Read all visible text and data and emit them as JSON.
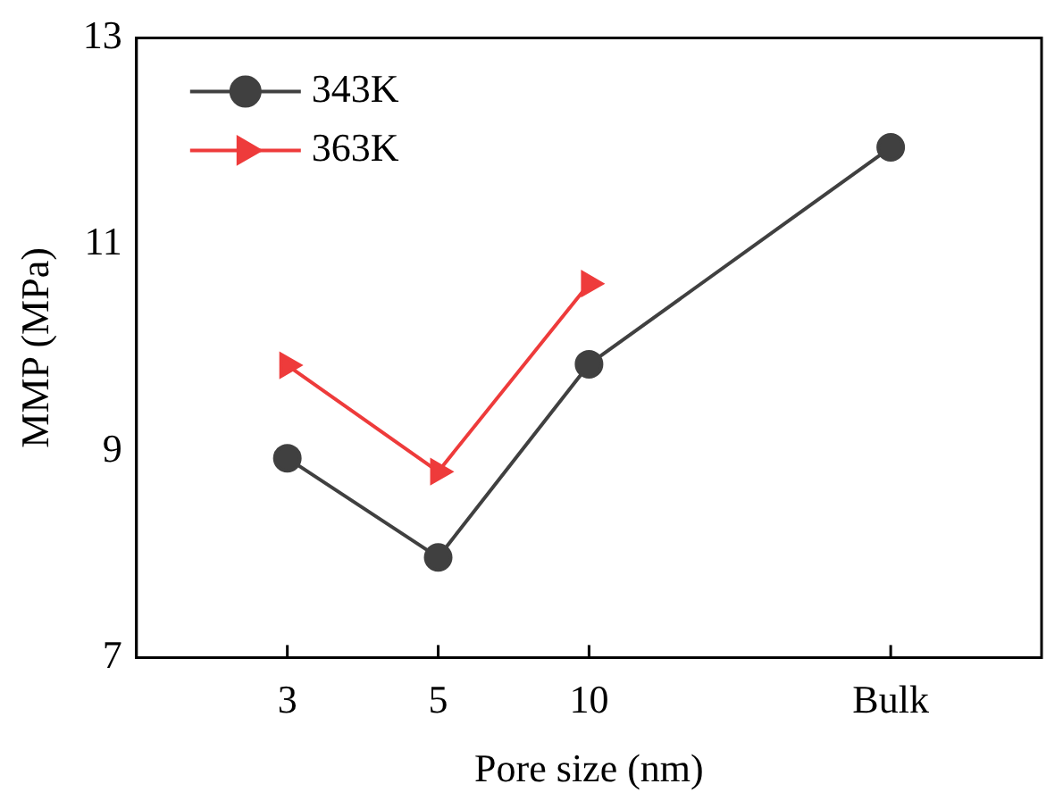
{
  "chart_data": {
    "type": "line",
    "xlabel": "Pore size (nm)",
    "ylabel": "MMP (MPa)",
    "categories": [
      null,
      "3",
      "5",
      "10",
      null,
      "Bulk",
      null
    ],
    "series": [
      {
        "name": "343K",
        "color": "#404040",
        "marker": "circle",
        "values": [
          null,
          8.93,
          7.97,
          9.84,
          null,
          11.94,
          null
        ]
      },
      {
        "name": "363K",
        "color": "#ee3b3b",
        "marker": "triangle",
        "values": [
          null,
          9.83,
          8.8,
          10.62,
          null,
          null,
          null
        ]
      }
    ],
    "ylim": [
      7,
      13
    ],
    "yticks": [
      7,
      9,
      11,
      13
    ],
    "grid": false,
    "legend": "top left",
    "line_style": "solid"
  }
}
